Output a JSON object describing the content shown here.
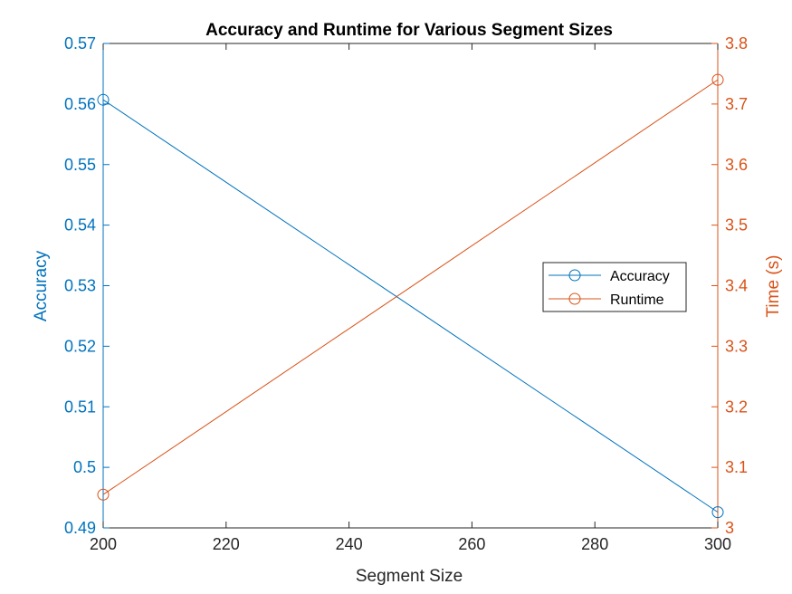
{
  "chart_data": {
    "type": "line",
    "title": "Accuracy and Runtime for Various Segment Sizes",
    "xlabel": "Segment Size",
    "ylabel_left": "Accuracy",
    "ylabel_right": "Time (s)",
    "x": [
      200,
      300
    ],
    "xlim": [
      200,
      300
    ],
    "xticks": [
      "200",
      "220",
      "240",
      "260",
      "280",
      "300"
    ],
    "ylim_left": [
      0.49,
      0.57
    ],
    "yticks_left": [
      "0.49",
      "0.5",
      "0.51",
      "0.52",
      "0.53",
      "0.54",
      "0.55",
      "0.56",
      "0.57"
    ],
    "ylim_right": [
      3.0,
      3.8
    ],
    "yticks_right": [
      "3",
      "3.1",
      "3.2",
      "3.3",
      "3.4",
      "3.5",
      "3.6",
      "3.7",
      "3.8"
    ],
    "grid": false,
    "legend_position": "right",
    "series": [
      {
        "name": "Accuracy",
        "axis": "left",
        "values": [
          0.5607,
          0.4926
        ],
        "color": "#0072BD",
        "marker": "circle"
      },
      {
        "name": "Runtime",
        "axis": "right",
        "values": [
          3.055,
          3.74
        ],
        "color": "#D95319",
        "marker": "circle"
      }
    ]
  }
}
